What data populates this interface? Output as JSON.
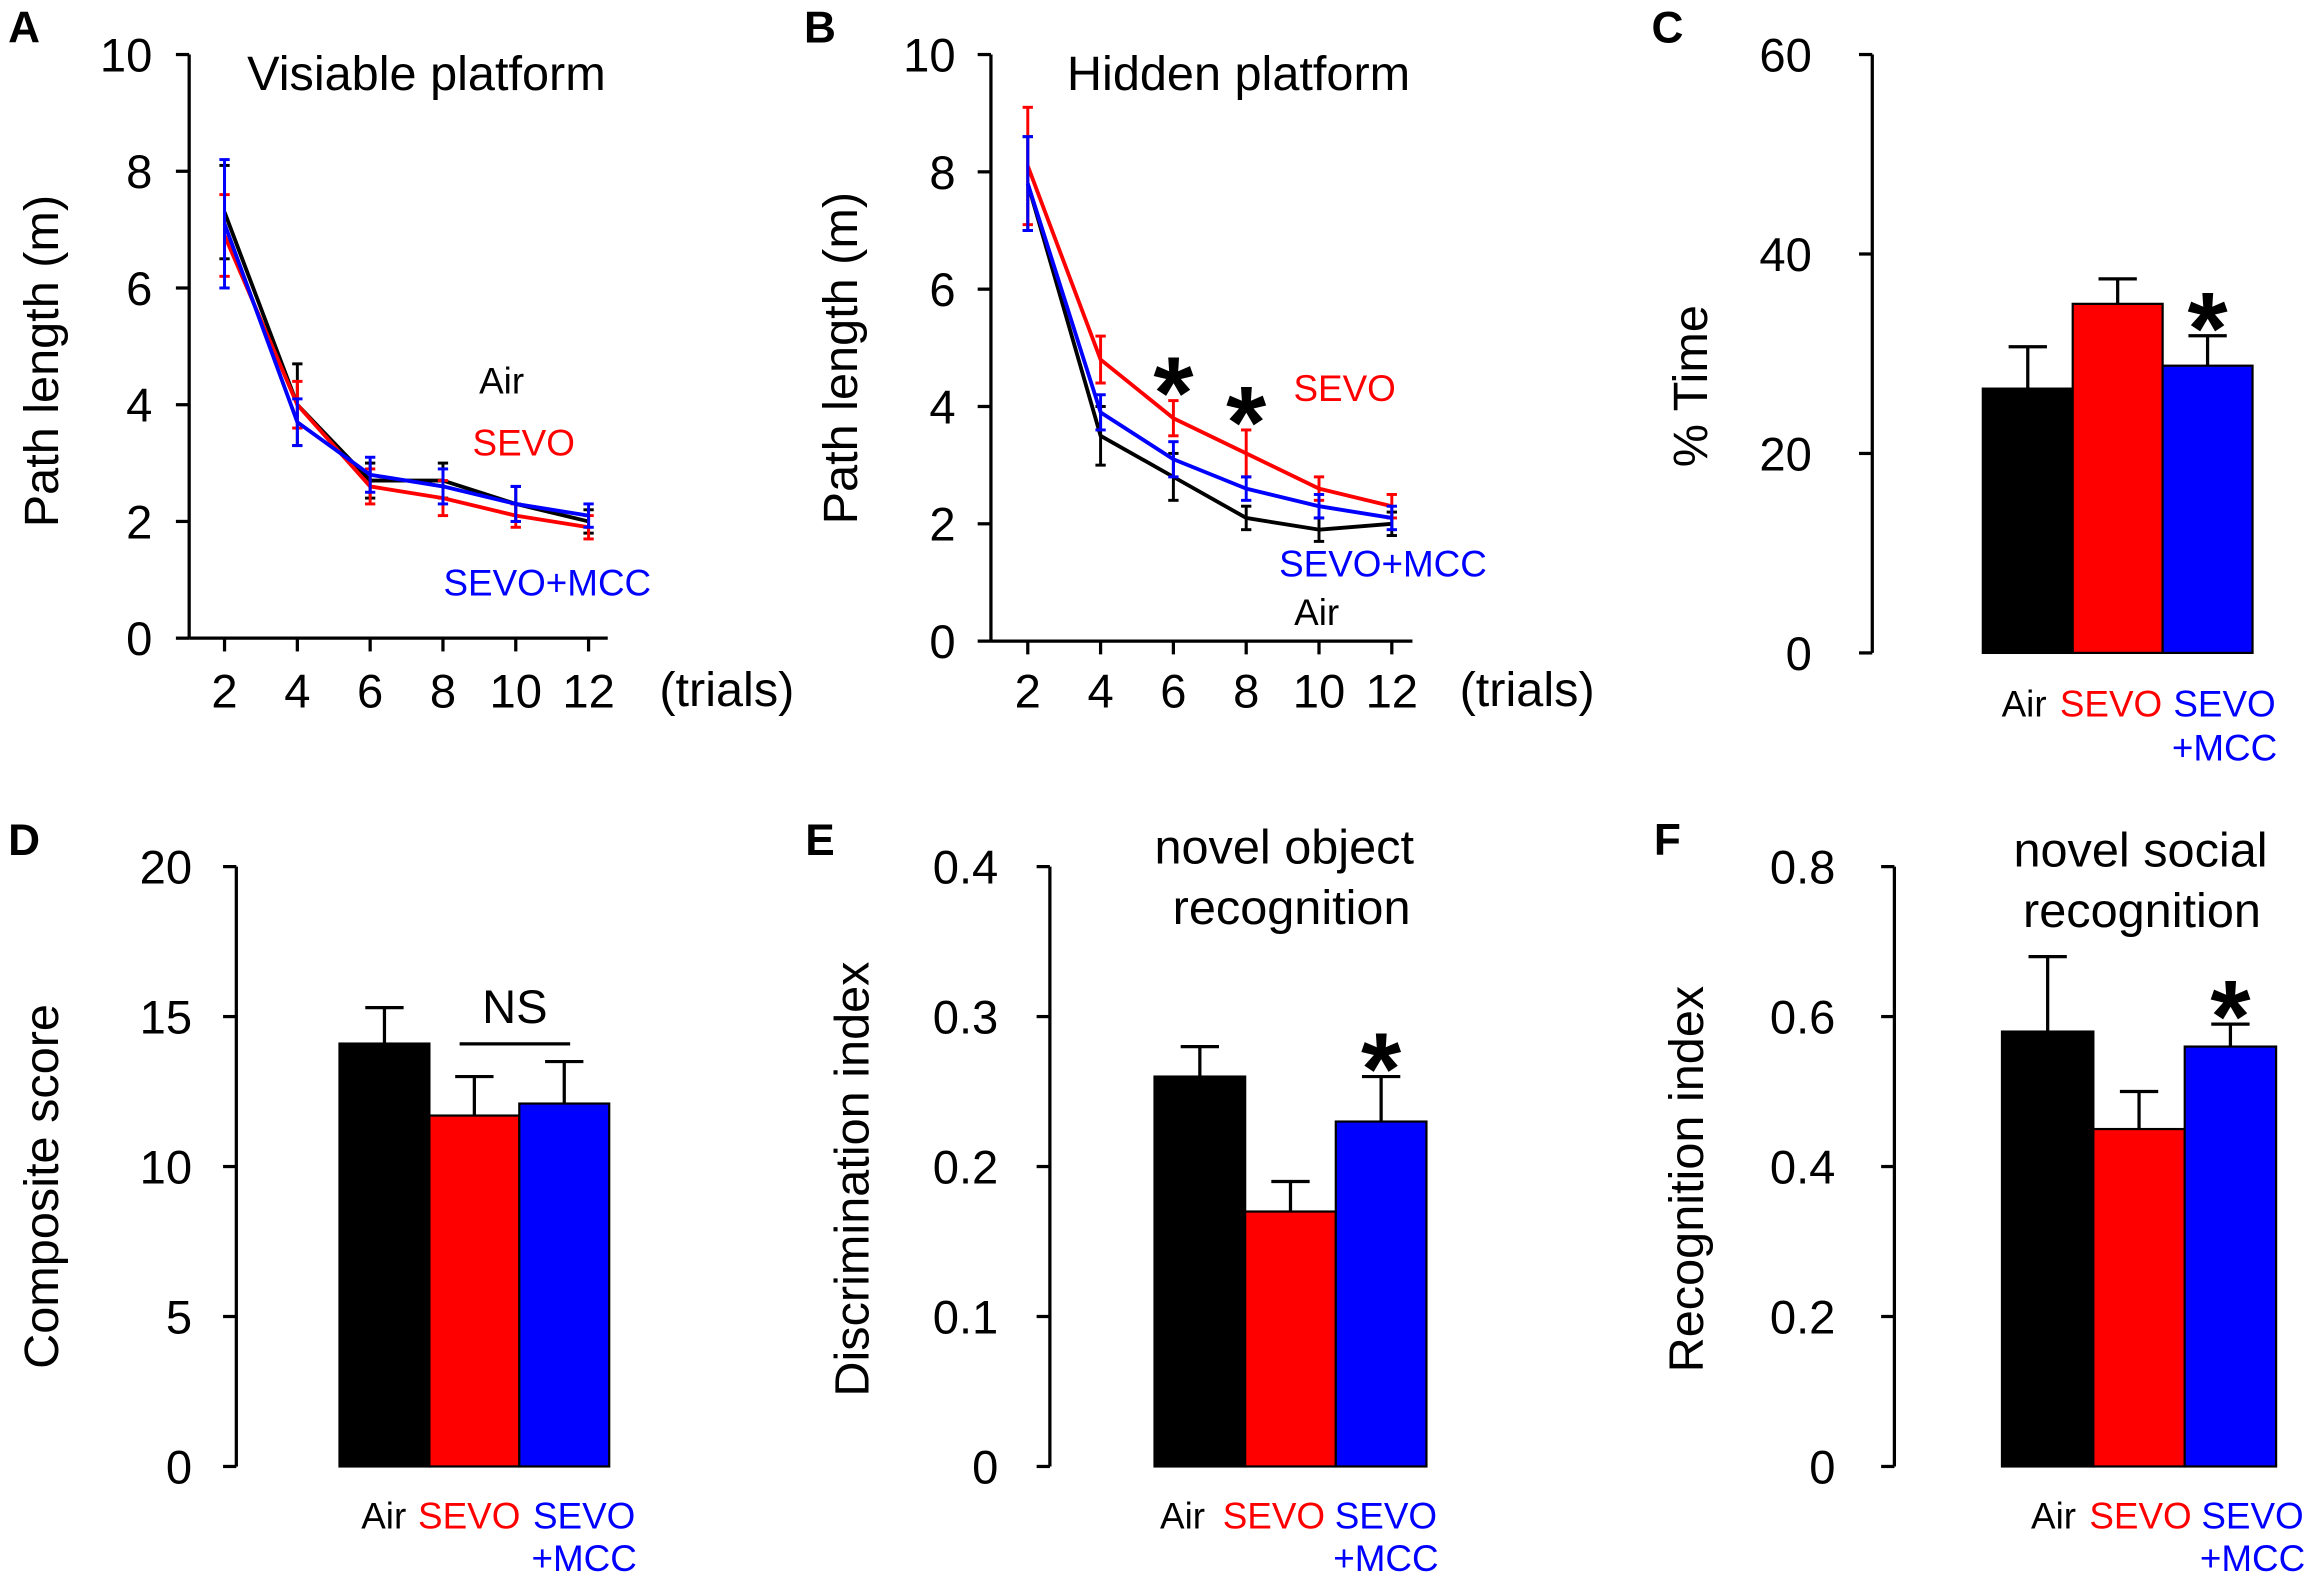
{
  "chart_data": [
    {
      "panel": "A",
      "type": "line",
      "title": "Visiable platform",
      "xlabel": "(trials)",
      "ylabel": "Path length (m)",
      "x": [
        2,
        4,
        6,
        8,
        10,
        12
      ],
      "ylim": [
        0,
        10
      ],
      "yticks": [
        0,
        2,
        4,
        6,
        8,
        10
      ],
      "series": [
        {
          "name": "Air",
          "color": "#000000",
          "values": [
            7.3,
            4.0,
            2.7,
            2.7,
            2.3,
            2.0
          ],
          "errors": [
            0.8,
            0.7,
            0.3,
            0.3,
            0.3,
            0.2
          ]
        },
        {
          "name": "SEVO",
          "color": "#ff0000",
          "values": [
            6.9,
            4.0,
            2.6,
            2.4,
            2.1,
            1.9
          ],
          "errors": [
            0.7,
            0.4,
            0.3,
            0.3,
            0.2,
            0.2
          ]
        },
        {
          "name": "SEVO+MCC",
          "color": "#0000ff",
          "values": [
            7.1,
            3.7,
            2.8,
            2.6,
            2.3,
            2.1
          ],
          "errors": [
            1.1,
            0.4,
            0.3,
            0.3,
            0.3,
            0.2
          ]
        }
      ],
      "significance": []
    },
    {
      "panel": "B",
      "type": "line",
      "title": "Hidden platform",
      "xlabel": "(trials)",
      "ylabel": "Path length (m)",
      "x": [
        2,
        4,
        6,
        8,
        10,
        12
      ],
      "ylim": [
        0,
        10
      ],
      "yticks": [
        0,
        2,
        4,
        6,
        8,
        10
      ],
      "series": [
        {
          "name": "Air",
          "color": "#000000",
          "values": [
            7.8,
            3.5,
            2.8,
            2.1,
            1.9,
            2.0
          ],
          "errors": [
            0.8,
            0.5,
            0.4,
            0.2,
            0.2,
            0.2
          ]
        },
        {
          "name": "SEVO",
          "color": "#ff0000",
          "values": [
            8.1,
            4.8,
            3.8,
            3.2,
            2.6,
            2.3
          ],
          "errors": [
            1.0,
            0.4,
            0.3,
            0.4,
            0.2,
            0.2
          ]
        },
        {
          "name": "SEVO+MCC",
          "color": "#0000ff",
          "values": [
            7.8,
            3.9,
            3.1,
            2.6,
            2.3,
            2.1
          ],
          "errors": [
            0.8,
            0.3,
            0.3,
            0.2,
            0.2,
            0.2
          ]
        }
      ],
      "significance": [
        {
          "x": 6,
          "label": "*"
        },
        {
          "x": 8,
          "label": "*"
        }
      ]
    },
    {
      "panel": "C",
      "type": "bar",
      "ylabel": "% Time",
      "ylim": [
        0,
        60
      ],
      "yticks": [
        0,
        20,
        40,
        60
      ],
      "categories": [
        [
          "Air"
        ],
        [
          "SEVO"
        ],
        [
          "SEVO",
          "+MCC"
        ]
      ],
      "colors": [
        "#000000",
        "#ff0000",
        "#0000ff"
      ],
      "values": [
        26.5,
        35.0,
        28.8
      ],
      "errors": [
        4.2,
        2.5,
        3.0
      ],
      "significance": [
        {
          "category": 2,
          "label": "*"
        }
      ]
    },
    {
      "panel": "D",
      "type": "bar",
      "ylabel": "Composite score",
      "ylim": [
        0,
        20
      ],
      "yticks": [
        0,
        5,
        10,
        15,
        20
      ],
      "categories": [
        [
          "Air"
        ],
        [
          "SEVO"
        ],
        [
          "SEVO",
          "+MCC"
        ]
      ],
      "colors": [
        "#000000",
        "#ff0000",
        "#0000ff"
      ],
      "values": [
        14.1,
        11.7,
        12.1
      ],
      "errors": [
        1.2,
        1.3,
        1.4
      ],
      "bracket": {
        "from": 1,
        "to": 2,
        "label": "NS"
      },
      "significance": []
    },
    {
      "panel": "E",
      "type": "bar",
      "title": [
        "novel object",
        "recognition"
      ],
      "ylabel": "Discrimination index",
      "ylim": [
        0,
        0.4
      ],
      "yticks": [
        0,
        0.1,
        0.2,
        0.3,
        0.4
      ],
      "categories": [
        [
          "Air"
        ],
        [
          "SEVO"
        ],
        [
          "SEVO",
          "+MCC"
        ]
      ],
      "colors": [
        "#000000",
        "#ff0000",
        "#0000ff"
      ],
      "values": [
        0.26,
        0.17,
        0.23
      ],
      "errors": [
        0.02,
        0.02,
        0.03
      ],
      "significance": [
        {
          "category": 2,
          "label": "*"
        }
      ]
    },
    {
      "panel": "F",
      "type": "bar",
      "title": [
        "novel social",
        "recognition"
      ],
      "ylabel": "Recognition index",
      "ylim": [
        0,
        0.8
      ],
      "yticks": [
        0,
        0.2,
        0.4,
        0.6,
        0.8
      ],
      "categories": [
        [
          "Air"
        ],
        [
          "SEVO"
        ],
        [
          "SEVO",
          "+MCC"
        ]
      ],
      "colors": [
        "#000000",
        "#ff0000",
        "#0000ff"
      ],
      "values": [
        0.58,
        0.45,
        0.56
      ],
      "errors": [
        0.1,
        0.05,
        0.03
      ],
      "significance": [
        {
          "category": 2,
          "label": "*"
        }
      ]
    }
  ]
}
